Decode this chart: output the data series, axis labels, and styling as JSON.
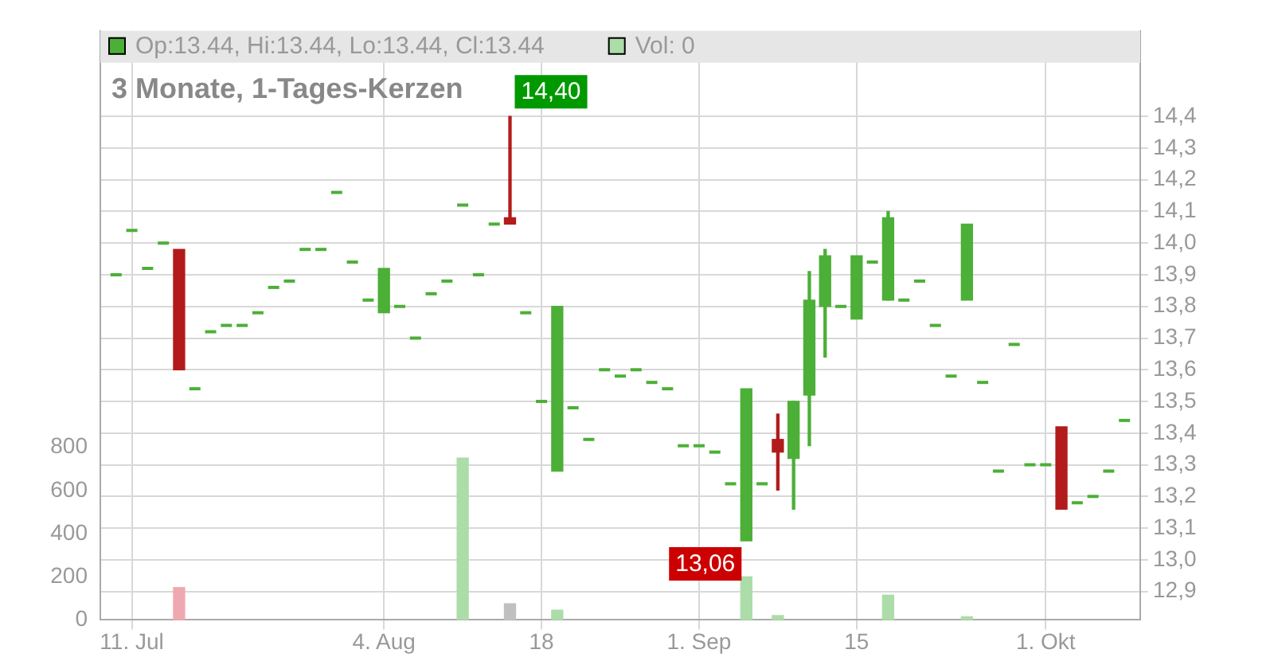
{
  "chart_data": {
    "type": "candlestick",
    "title": "3 Monate, 1-Tages-Kerzen",
    "categories": [
      null,
      "11. Jul",
      null,
      null,
      null,
      null,
      null,
      null,
      null,
      null,
      null,
      null,
      null,
      null,
      null,
      null,
      null,
      "4. Aug",
      null,
      null,
      null,
      null,
      null,
      null,
      null,
      null,
      null,
      "18",
      null,
      null,
      null,
      null,
      null,
      null,
      null,
      null,
      null,
      "1. Sep",
      null,
      null,
      null,
      null,
      null,
      null,
      null,
      null,
      null,
      "15",
      null,
      null,
      null,
      null,
      null,
      null,
      null,
      null,
      null,
      null,
      null,
      "1. Okt",
      null,
      null,
      null,
      null,
      null
    ],
    "series": [
      {
        "name": "Op:13.44, Hi:13.44, Lo:13.44, Cl:13.44",
        "ohlc": [
          [
            13.9,
            13.9,
            13.9,
            13.9
          ],
          [
            14.04,
            14.04,
            14.04,
            14.04
          ],
          [
            13.92,
            13.92,
            13.92,
            13.92
          ],
          [
            14.0,
            14.0,
            14.0,
            14.0
          ],
          [
            13.98,
            13.98,
            13.6,
            13.6
          ],
          [
            13.54,
            13.54,
            13.54,
            13.54
          ],
          [
            13.72,
            13.72,
            13.72,
            13.72
          ],
          [
            13.74,
            13.74,
            13.74,
            13.74
          ],
          [
            13.74,
            13.74,
            13.74,
            13.74
          ],
          [
            13.78,
            13.78,
            13.78,
            13.78
          ],
          [
            13.86,
            13.86,
            13.86,
            13.86
          ],
          [
            13.88,
            13.88,
            13.88,
            13.88
          ],
          [
            13.98,
            13.98,
            13.98,
            13.98
          ],
          [
            13.98,
            13.98,
            13.98,
            13.98
          ],
          [
            14.16,
            14.16,
            14.16,
            14.16
          ],
          [
            13.94,
            13.94,
            13.94,
            13.94
          ],
          [
            13.82,
            13.82,
            13.82,
            13.82
          ],
          [
            13.78,
            13.92,
            13.78,
            13.92
          ],
          [
            13.8,
            13.8,
            13.8,
            13.8
          ],
          [
            13.7,
            13.7,
            13.7,
            13.7
          ],
          [
            13.84,
            13.84,
            13.84,
            13.84
          ],
          [
            13.88,
            13.88,
            13.88,
            13.88
          ],
          [
            14.12,
            14.12,
            14.12,
            14.12
          ],
          [
            13.9,
            13.9,
            13.9,
            13.9
          ],
          [
            14.06,
            14.06,
            14.06,
            14.06
          ],
          [
            14.08,
            14.4,
            14.06,
            14.06
          ],
          [
            13.78,
            13.78,
            13.78,
            13.78
          ],
          [
            13.5,
            13.5,
            13.5,
            13.5
          ],
          [
            13.28,
            13.8,
            13.28,
            13.8
          ],
          [
            13.48,
            13.48,
            13.48,
            13.48
          ],
          [
            13.38,
            13.38,
            13.38,
            13.38
          ],
          [
            13.6,
            13.6,
            13.6,
            13.6
          ],
          [
            13.58,
            13.58,
            13.58,
            13.58
          ],
          [
            13.6,
            13.6,
            13.6,
            13.6
          ],
          [
            13.56,
            13.56,
            13.56,
            13.56
          ],
          [
            13.54,
            13.54,
            13.54,
            13.54
          ],
          [
            13.36,
            13.36,
            13.36,
            13.36
          ],
          [
            13.36,
            13.36,
            13.36,
            13.36
          ],
          [
            13.34,
            13.34,
            13.34,
            13.34
          ],
          [
            13.24,
            13.24,
            13.24,
            13.24
          ],
          [
            13.06,
            13.54,
            13.06,
            13.54
          ],
          [
            13.24,
            13.24,
            13.24,
            13.24
          ],
          [
            13.38,
            13.46,
            13.22,
            13.34
          ],
          [
            13.32,
            13.5,
            13.16,
            13.5
          ],
          [
            13.52,
            13.91,
            13.36,
            13.82
          ],
          [
            13.8,
            13.98,
            13.64,
            13.96
          ],
          [
            13.8,
            13.8,
            13.8,
            13.8
          ],
          [
            13.76,
            13.96,
            13.76,
            13.96
          ],
          [
            13.94,
            13.94,
            13.94,
            13.94
          ],
          [
            13.82,
            14.1,
            13.82,
            14.08
          ],
          [
            13.82,
            13.82,
            13.82,
            13.82
          ],
          [
            13.88,
            13.88,
            13.88,
            13.88
          ],
          [
            13.74,
            13.74,
            13.74,
            13.74
          ],
          [
            13.58,
            13.58,
            13.58,
            13.58
          ],
          [
            13.82,
            14.06,
            13.82,
            14.06
          ],
          [
            13.56,
            13.56,
            13.56,
            13.56
          ],
          [
            13.28,
            13.28,
            13.28,
            13.28
          ],
          [
            13.68,
            13.68,
            13.68,
            13.68
          ],
          [
            13.3,
            13.3,
            13.3,
            13.3
          ],
          [
            13.3,
            13.3,
            13.3,
            13.3
          ],
          [
            13.42,
            13.42,
            13.16,
            13.16
          ],
          [
            13.18,
            13.18,
            13.18,
            13.18
          ],
          [
            13.2,
            13.2,
            13.2,
            13.2
          ],
          [
            13.28,
            13.28,
            13.28,
            13.28
          ],
          [
            13.44,
            13.44,
            13.44,
            13.44
          ]
        ],
        "colors": [
          "#4caf37",
          "#4caf37",
          "#4caf37",
          "#4caf37",
          "#b31b1b",
          "#4caf37",
          "#4caf37",
          "#4caf37",
          "#4caf37",
          "#4caf37",
          "#4caf37",
          "#4caf37",
          "#4caf37",
          "#4caf37",
          "#4caf37",
          "#4caf37",
          "#4caf37",
          "#4caf37",
          "#4caf37",
          "#4caf37",
          "#4caf37",
          "#4caf37",
          "#4caf37",
          "#4caf37",
          "#4caf37",
          "#b31b1b",
          "#4caf37",
          "#4caf37",
          "#4caf37",
          "#4caf37",
          "#4caf37",
          "#4caf37",
          "#4caf37",
          "#4caf37",
          "#4caf37",
          "#4caf37",
          "#4caf37",
          "#4caf37",
          "#4caf37",
          "#4caf37",
          "#4caf37",
          "#4caf37",
          "#b31b1b",
          "#4caf37",
          "#4caf37",
          "#4caf37",
          "#4caf37",
          "#4caf37",
          "#4caf37",
          "#4caf37",
          "#4caf37",
          "#4caf37",
          "#4caf37",
          "#4caf37",
          "#4caf37",
          "#4caf37",
          "#4caf37",
          "#4caf37",
          "#4caf37",
          "#4caf37",
          "#b31b1b",
          "#4caf37",
          "#4caf37",
          "#4caf37",
          "#4caf37"
        ]
      },
      {
        "name": "Vol: 0",
        "type": "bar",
        "axis": "y2",
        "values": [
          null,
          null,
          null,
          null,
          150,
          null,
          null,
          null,
          null,
          null,
          null,
          null,
          null,
          null,
          null,
          null,
          null,
          null,
          null,
          null,
          null,
          null,
          750,
          null,
          null,
          75,
          null,
          null,
          45,
          null,
          null,
          null,
          null,
          null,
          null,
          null,
          null,
          null,
          null,
          null,
          200,
          null,
          20,
          null,
          null,
          null,
          null,
          null,
          null,
          115,
          null,
          null,
          null,
          null,
          15,
          null,
          null,
          null,
          null,
          null,
          null,
          null,
          null,
          null,
          null
        ],
        "colors": [
          "#acdca8",
          "#acdca8",
          "#acdca8",
          "#acdca8",
          "#f0a8b0",
          "#acdca8",
          "#acdca8",
          "#acdca8",
          "#acdca8",
          "#acdca8",
          "#acdca8",
          "#acdca8",
          "#acdca8",
          "#acdca8",
          "#acdca8",
          "#acdca8",
          "#acdca8",
          "#acdca8",
          "#acdca8",
          "#acdca8",
          "#acdca8",
          "#acdca8",
          "#acdca8",
          "#acdca8",
          "#acdca8",
          "#c0c0c0",
          "#acdca8",
          "#acdca8",
          "#acdca8",
          "#acdca8",
          "#acdca8",
          "#acdca8",
          "#acdca8",
          "#acdca8",
          "#acdca8",
          "#acdca8",
          "#acdca8",
          "#acdca8",
          "#acdca8",
          "#acdca8",
          "#acdca8",
          "#acdca8",
          "#acdca8",
          "#acdca8",
          "#acdca8",
          "#acdca8",
          "#acdca8",
          "#acdca8",
          "#acdca8",
          "#acdca8",
          "#acdca8",
          "#acdca8",
          "#acdca8",
          "#acdca8",
          "#acdca8",
          "#acdca8",
          "#acdca8",
          "#acdca8",
          "#acdca8",
          "#acdca8",
          "#acdca8",
          "#acdca8",
          "#acdca8",
          "#acdca8",
          "#acdca8"
        ]
      }
    ],
    "ylim": [
      12.81,
      14.67
    ],
    "yticks": [
      {
        "value": 12.9,
        "label": "12,9"
      },
      {
        "value": 13.0,
        "label": "13,0"
      },
      {
        "value": 13.1,
        "label": "13,1"
      },
      {
        "value": 13.2,
        "label": "13,2"
      },
      {
        "value": 13.3,
        "label": "13,3"
      },
      {
        "value": 13.4,
        "label": "13,4"
      },
      {
        "value": 13.5,
        "label": "13,5"
      },
      {
        "value": 13.6,
        "label": "13,6"
      },
      {
        "value": 13.7,
        "label": "13,7"
      },
      {
        "value": 13.8,
        "label": "13,8"
      },
      {
        "value": 13.9,
        "label": "13,9"
      },
      {
        "value": 14.0,
        "label": "14,0"
      },
      {
        "value": 14.1,
        "label": "14,1"
      },
      {
        "value": 14.2,
        "label": "14,2"
      },
      {
        "value": 14.3,
        "label": "14,3"
      },
      {
        "value": 14.4,
        "label": "14,4"
      }
    ],
    "y2lim": [
      0,
      2730
    ],
    "y2ticks": [
      0,
      200,
      400,
      600,
      800
    ],
    "annotations": [
      "14,40",
      "13,06"
    ],
    "grid": true,
    "legend": "top left"
  }
}
